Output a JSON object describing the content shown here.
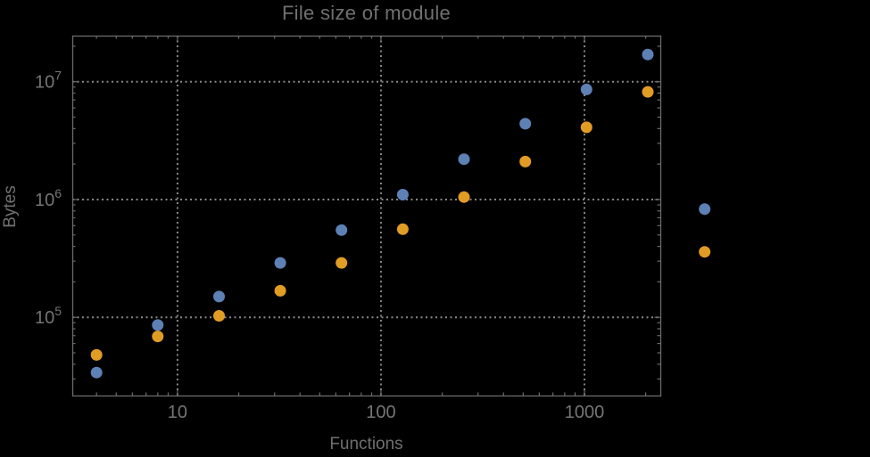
{
  "title": "File size of module",
  "axes": {
    "xlabel": "Functions",
    "ylabel": "Bytes"
  },
  "colors": {
    "background": "#000000",
    "frame": "#6b6b6b",
    "grid": "#878787",
    "tick_label": "#757575",
    "title_text": "#707070",
    "series_blue": "#5e81b5",
    "series_orange": "#e19c24"
  },
  "chart_data": {
    "type": "scatter",
    "title": "File size of module",
    "xlabel": "Functions",
    "ylabel": "Bytes",
    "x_scale": "log",
    "y_scale": "log",
    "grid": "dotted, at decade lines",
    "legend": "none",
    "marker_radius_px": 6.5,
    "xlim": [
      3.04,
      2360
    ],
    "ylim": [
      21700,
      24600000
    ],
    "x": [
      4,
      8,
      16,
      32,
      64,
      128,
      256,
      512,
      1024,
      2048,
      3900
    ],
    "series": [
      {
        "name": "series-1-blue",
        "color": "#5e81b5",
        "values": [
          34000,
          86000,
          150000,
          290000,
          550000,
          1100000,
          2200000,
          4400000,
          8600000,
          17000000,
          830000
        ]
      },
      {
        "name": "series-2-orange",
        "color": "#e19c24",
        "values": [
          48000,
          69000,
          103000,
          168000,
          290000,
          560000,
          1050000,
          2100000,
          4100000,
          8200000,
          360000
        ]
      }
    ],
    "x_major_ticks": [
      {
        "value": 10,
        "label": "10"
      },
      {
        "value": 100,
        "label": "100"
      },
      {
        "value": 1000,
        "label": "1000"
      }
    ],
    "y_major_ticks": [
      {
        "value": 100000,
        "base": "10",
        "exp": "5"
      },
      {
        "value": 1000000,
        "base": "10",
        "exp": "6"
      },
      {
        "value": 10000000,
        "base": "10",
        "exp": "7"
      }
    ],
    "x_minor_ticks": [
      4,
      5,
      6,
      7,
      8,
      9,
      20,
      30,
      40,
      50,
      60,
      70,
      80,
      90,
      200,
      300,
      400,
      500,
      600,
      700,
      800,
      900,
      2000
    ],
    "y_minor_ticks": [
      30000,
      40000,
      50000,
      60000,
      70000,
      80000,
      90000,
      200000,
      300000,
      400000,
      500000,
      600000,
      700000,
      800000,
      900000,
      2000000,
      3000000,
      4000000,
      5000000,
      6000000,
      7000000,
      8000000,
      9000000,
      20000000
    ]
  }
}
